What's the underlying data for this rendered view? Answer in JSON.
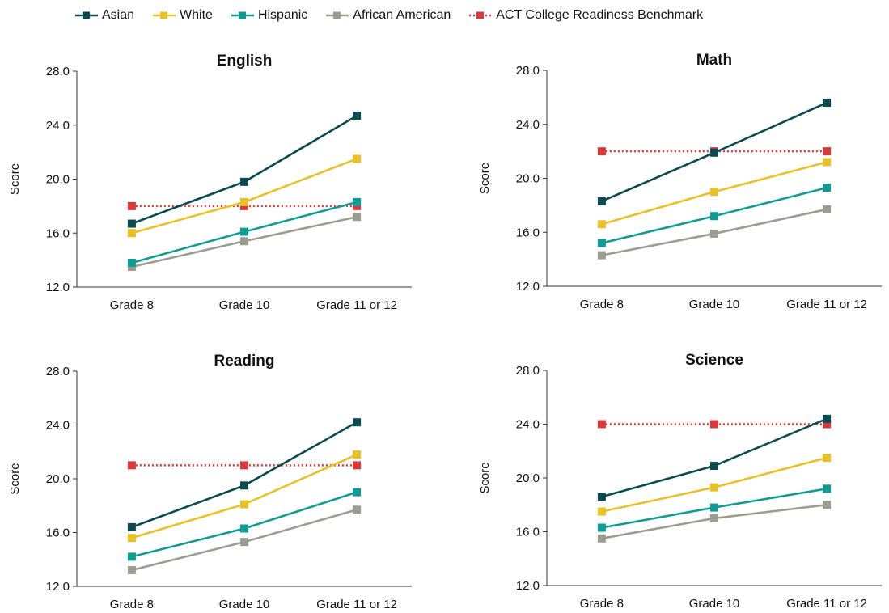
{
  "legend": {
    "items": [
      {
        "label": "Asian",
        "color": "#0b4a4f",
        "style": "solid"
      },
      {
        "label": "White",
        "color": "#e8c12a",
        "style": "solid"
      },
      {
        "label": "Hispanic",
        "color": "#139a93",
        "style": "solid"
      },
      {
        "label": "African American",
        "color": "#9c9c90",
        "style": "solid"
      },
      {
        "label": "ACT College Readiness Benchmark",
        "color": "#d63a3a",
        "style": "dotted"
      }
    ]
  },
  "chart_data": [
    {
      "type": "line",
      "title": "English",
      "ylabel": "Score",
      "categories": [
        "Grade 8",
        "Grade 10",
        "Grade 11 or 12"
      ],
      "ylim": [
        12.0,
        28.0
      ],
      "yticks": [
        "12.0",
        "16.0",
        "20.0",
        "24.0",
        "28.0"
      ],
      "series": [
        {
          "name": "Asian",
          "values": [
            16.7,
            19.8,
            24.7
          ]
        },
        {
          "name": "White",
          "values": [
            16.0,
            18.3,
            21.5
          ]
        },
        {
          "name": "Hispanic",
          "values": [
            13.8,
            16.1,
            18.3
          ]
        },
        {
          "name": "African American",
          "values": [
            13.5,
            15.4,
            17.2
          ]
        },
        {
          "name": "ACT College Readiness Benchmark",
          "values": [
            18.0,
            18.0,
            18.0
          ]
        }
      ]
    },
    {
      "type": "line",
      "title": "Math",
      "ylabel": "Score",
      "categories": [
        "Grade 8",
        "Grade 10",
        "Grade 11 or 12"
      ],
      "ylim": [
        12.0,
        28.0
      ],
      "yticks": [
        "12.0",
        "16.0",
        "20.0",
        "24.0",
        "28.0"
      ],
      "series": [
        {
          "name": "Asian",
          "values": [
            18.3,
            21.9,
            25.6
          ]
        },
        {
          "name": "White",
          "values": [
            16.6,
            19.0,
            21.2
          ]
        },
        {
          "name": "Hispanic",
          "values": [
            15.2,
            17.2,
            19.3
          ]
        },
        {
          "name": "African American",
          "values": [
            14.3,
            15.9,
            17.7
          ]
        },
        {
          "name": "ACT College Readiness Benchmark",
          "values": [
            22.0,
            22.0,
            22.0
          ]
        }
      ]
    },
    {
      "type": "line",
      "title": "Reading",
      "ylabel": "Score",
      "categories": [
        "Grade 8",
        "Grade 10",
        "Grade 11 or 12"
      ],
      "ylim": [
        12.0,
        28.0
      ],
      "yticks": [
        "12.0",
        "16.0",
        "20.0",
        "24.0",
        "28.0"
      ],
      "series": [
        {
          "name": "Asian",
          "values": [
            16.4,
            19.5,
            24.2
          ]
        },
        {
          "name": "White",
          "values": [
            15.6,
            18.1,
            21.8
          ]
        },
        {
          "name": "Hispanic",
          "values": [
            14.2,
            16.3,
            19.0
          ]
        },
        {
          "name": "African American",
          "values": [
            13.2,
            15.3,
            17.7
          ]
        },
        {
          "name": "ACT College Readiness Benchmark",
          "values": [
            21.0,
            21.0,
            21.0
          ]
        }
      ]
    },
    {
      "type": "line",
      "title": "Science",
      "ylabel": "Score",
      "categories": [
        "Grade 8",
        "Grade 10",
        "Grade 11 or 12"
      ],
      "ylim": [
        12.0,
        28.0
      ],
      "yticks": [
        "12.0",
        "16.0",
        "20.0",
        "24.0",
        "28.0"
      ],
      "series": [
        {
          "name": "Asian",
          "values": [
            18.6,
            20.9,
            24.4
          ]
        },
        {
          "name": "White",
          "values": [
            17.5,
            19.3,
            21.5
          ]
        },
        {
          "name": "Hispanic",
          "values": [
            16.3,
            17.8,
            19.2
          ]
        },
        {
          "name": "African American",
          "values": [
            15.5,
            17.0,
            18.0
          ]
        },
        {
          "name": "ACT College Readiness Benchmark",
          "values": [
            24.0,
            24.0,
            24.0
          ]
        }
      ]
    }
  ]
}
